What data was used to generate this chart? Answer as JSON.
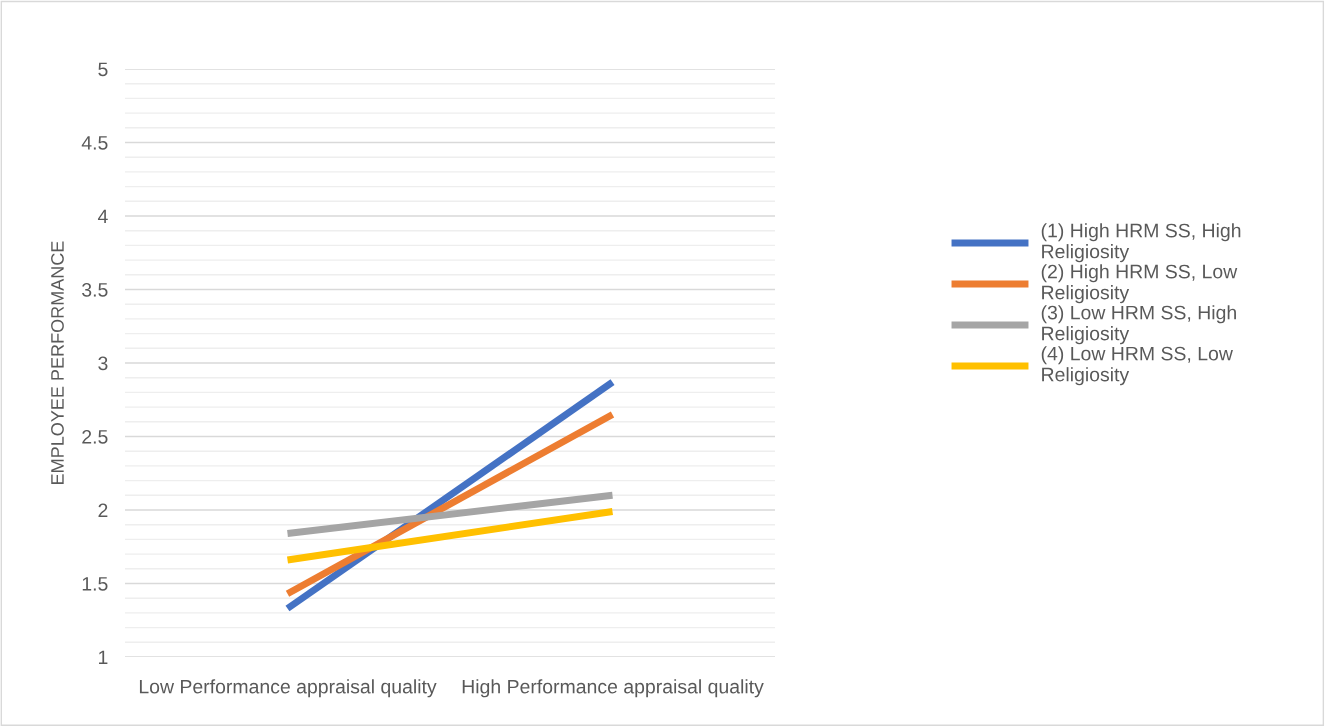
{
  "chart_data": {
    "type": "line",
    "ylabel": "EMPLOYEE PERFORMANCE",
    "categories": [
      "Low Performance appraisal quality",
      "High Performance appraisal quality"
    ],
    "series": [
      {
        "name": "(1) High HRM SS, High Religiosity",
        "color": "#4472c4",
        "values": [
          1.33,
          2.87
        ]
      },
      {
        "name": "(2) High HRM SS, Low Religiosity",
        "color": "#ed7d31",
        "values": [
          1.43,
          2.65
        ]
      },
      {
        "name": "(3) Low HRM SS, High Religiosity",
        "color": "#a5a5a5",
        "values": [
          1.84,
          2.1
        ]
      },
      {
        "name": "(4) Low HRM SS, Low Religiosity",
        "color": "#ffc000",
        "values": [
          1.66,
          1.99
        ]
      }
    ],
    "ylim": [
      1,
      5
    ],
    "yticks": [
      1,
      {
        "value": 1.1,
        "label": null
      },
      {
        "value": 1.2,
        "label": null
      },
      {
        "value": 1.3,
        "label": null
      },
      {
        "value": 1.4,
        "label": null
      },
      1.5,
      {
        "value": 1.6,
        "label": null
      },
      {
        "value": 1.7,
        "label": null
      },
      {
        "value": 1.8,
        "label": null
      },
      {
        "value": 1.9,
        "label": null
      },
      2,
      {
        "value": 2.1,
        "label": null
      },
      {
        "value": 2.2,
        "label": null
      },
      {
        "value": 2.3,
        "label": null
      },
      {
        "value": 2.4,
        "label": null
      },
      2.5,
      {
        "value": 2.6,
        "label": null
      },
      {
        "value": 2.7,
        "label": null
      },
      {
        "value": 2.8,
        "label": null
      },
      {
        "value": 2.9,
        "label": null
      },
      3,
      {
        "value": 3.1,
        "label": null
      },
      {
        "value": 3.2,
        "label": null
      },
      {
        "value": 3.3,
        "label": null
      },
      {
        "value": 3.4,
        "label": null
      },
      3.5,
      {
        "value": 3.6,
        "label": null
      },
      {
        "value": 3.7,
        "label": null
      },
      {
        "value": 3.8,
        "label": null
      },
      {
        "value": 3.9,
        "label": null
      },
      4,
      {
        "value": 4.1,
        "label": null
      },
      {
        "value": 4.2,
        "label": null
      },
      {
        "value": 4.3,
        "label": null
      },
      {
        "value": 4.4,
        "label": null
      },
      4.5,
      {
        "value": 4.6,
        "label": null
      },
      {
        "value": 4.7,
        "label": null
      },
      {
        "value": 4.8,
        "label": null
      },
      {
        "value": 4.9,
        "label": null
      },
      5
    ],
    "grid": "y",
    "legend": "right",
    "marker": "none",
    "line_style": "solid"
  }
}
